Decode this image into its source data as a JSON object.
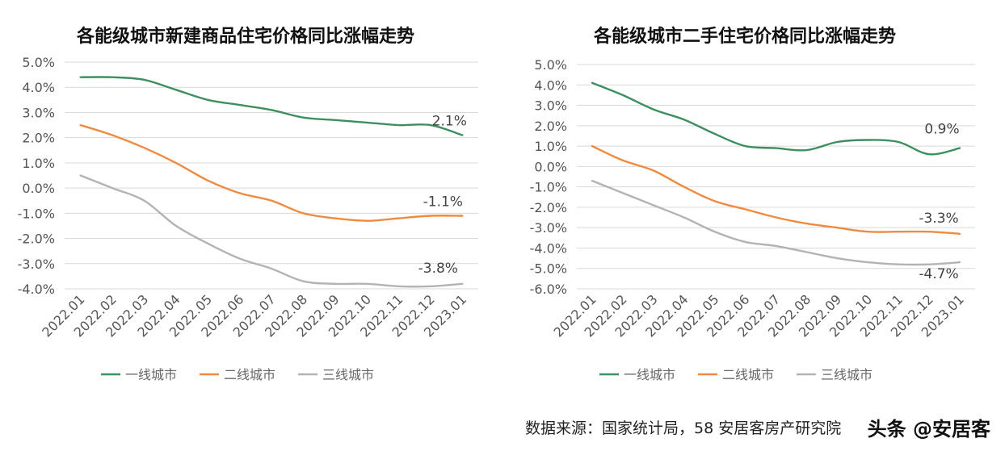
{
  "chart_data": [
    {
      "type": "line",
      "title": "各能级城市新建商品住宅价格同比涨幅走势",
      "categories": [
        "2022.01",
        "2022.02",
        "2022.03",
        "2022.04",
        "2022.05",
        "2022.06",
        "2022.07",
        "2022.08",
        "2022.09",
        "2022.10",
        "2022.11",
        "2022.12",
        "2023.01"
      ],
      "ylim": [
        -4.0,
        5.0
      ],
      "yticks": [
        5.0,
        4.0,
        3.0,
        2.0,
        1.0,
        0.0,
        -1.0,
        -2.0,
        -3.0,
        -4.0
      ],
      "grid": true,
      "legend": "bottom",
      "series": [
        {
          "name": "一线城市",
          "color": "#3d8f5f",
          "values": [
            4.4,
            4.4,
            4.3,
            3.9,
            3.5,
            3.3,
            3.1,
            2.8,
            2.7,
            2.6,
            2.5,
            2.5,
            2.1
          ],
          "end_label": "2.1%"
        },
        {
          "name": "二线城市",
          "color": "#f08a40",
          "values": [
            2.5,
            2.1,
            1.6,
            1.0,
            0.3,
            -0.2,
            -0.5,
            -1.0,
            -1.2,
            -1.3,
            -1.2,
            -1.1,
            -1.1
          ],
          "end_label": "-1.1%"
        },
        {
          "name": "三线城市",
          "color": "#b3b3b3",
          "values": [
            0.5,
            0.0,
            -0.5,
            -1.5,
            -2.2,
            -2.8,
            -3.2,
            -3.7,
            -3.8,
            -3.8,
            -3.9,
            -3.9,
            -3.8
          ],
          "end_label": "-3.8%"
        }
      ]
    },
    {
      "type": "line",
      "title": "各能级城市二手住宅价格同比涨幅走势",
      "categories": [
        "2022.01",
        "2022.02",
        "2022.03",
        "2022.04",
        "2022.05",
        "2022.06",
        "2022.07",
        "2022.08",
        "2022.09",
        "2022.10",
        "2022.11",
        "2022.12",
        "2023.01"
      ],
      "ylim": [
        -6.0,
        5.0
      ],
      "yticks": [
        5.0,
        4.0,
        3.0,
        2.0,
        1.0,
        0.0,
        -1.0,
        -2.0,
        -3.0,
        -4.0,
        -5.0,
        -6.0
      ],
      "grid": true,
      "legend": "bottom",
      "series": [
        {
          "name": "一线城市",
          "color": "#3d8f5f",
          "values": [
            4.1,
            3.5,
            2.8,
            2.3,
            1.6,
            1.0,
            0.9,
            0.8,
            1.2,
            1.3,
            1.2,
            0.6,
            0.9
          ],
          "end_label": "0.9%"
        },
        {
          "name": "二线城市",
          "color": "#f08a40",
          "values": [
            1.0,
            0.3,
            -0.2,
            -1.0,
            -1.7,
            -2.1,
            -2.5,
            -2.8,
            -3.0,
            -3.2,
            -3.2,
            -3.2,
            -3.3
          ],
          "end_label": "-3.3%"
        },
        {
          "name": "三线城市",
          "color": "#b3b3b3",
          "values": [
            -0.7,
            -1.3,
            -1.9,
            -2.5,
            -3.2,
            -3.7,
            -3.9,
            -4.2,
            -4.5,
            -4.7,
            -4.8,
            -4.8,
            -4.7
          ],
          "end_label": "-4.7%"
        }
      ]
    }
  ],
  "footer": {
    "source": "数据来源：国家统计局，58 安居客房产研究院",
    "watermark": "头条 @安居客"
  }
}
